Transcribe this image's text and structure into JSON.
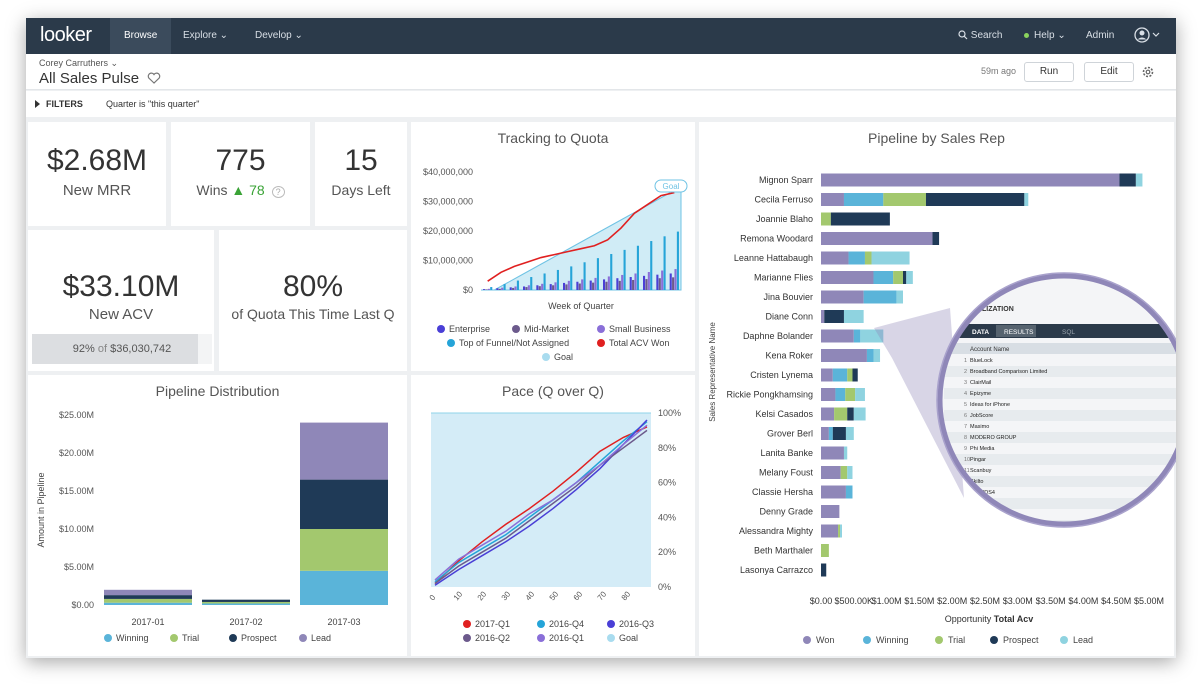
{
  "nav": {
    "logo": "looker",
    "items": [
      "Browse",
      "Explore ⌄",
      "Develop ⌄"
    ],
    "search": "Search",
    "help": "Help ⌄",
    "admin": "Admin"
  },
  "header": {
    "owner": "Corey Carruthers ⌄",
    "title": "All Sales Pulse",
    "age": "59m ago",
    "run_label": "Run",
    "edit_label": "Edit"
  },
  "filters": {
    "label": "FILTERS",
    "value": "Quarter is \"this quarter\""
  },
  "kpis": {
    "mrr": {
      "value": "$2.68M",
      "label": "New MRR"
    },
    "wins": {
      "value": "775",
      "label": "Wins",
      "delta": "78"
    },
    "days": {
      "value": "15",
      "label": "Days Left"
    },
    "acv": {
      "value": "$33.10M",
      "label": "New ACV",
      "progress_pct": "92%",
      "progress_of": "of",
      "progress_target": "$36,030,742",
      "progress_fraction": 0.92
    },
    "quota": {
      "value": "80%",
      "label": "of Quota This Time Last Q"
    }
  },
  "colors": {
    "enterprise": "#4a3fd6",
    "midmarket": "#6c5a8c",
    "small_business": "#8a6fd8",
    "top_funnel": "#25a4d8",
    "total_acv": "#e02020",
    "goal": "#a9dcef",
    "won": "#8f87b8",
    "winning": "#5ab4d9",
    "trial": "#a3c86e",
    "prospect": "#1f3a57",
    "lead": "#8fd3e0"
  },
  "charts": {
    "tracking": {
      "title": "Tracking to Quota",
      "goal_badge": "Goal",
      "xlabel": "Week of Quarter",
      "y_ticks": [
        "$40,000,000",
        "$30,000,000",
        "$20,000,000",
        "$10,000,000",
        "$0"
      ],
      "legend": [
        "Enterprise",
        "Mid-Market",
        "Small Business",
        "Top of Funnel/Not Assigned",
        "Total ACV Won",
        "Goal"
      ]
    },
    "distribution": {
      "title": "Pipeline Distribution",
      "ylabel": "Amount in Pipeline",
      "y_ticks": [
        "$25.00M",
        "$20.00M",
        "$15.00M",
        "$10.00M",
        "$5.00M",
        "$0.00"
      ],
      "legend": [
        "Winning",
        "Trial",
        "Prospect",
        "Lead"
      ]
    },
    "pace": {
      "title": "Pace (Q over Q)",
      "x_ticks": [
        "0",
        "10",
        "20",
        "30",
        "40",
        "50",
        "60",
        "70",
        "80"
      ],
      "y_ticks": [
        "100%",
        "80%",
        "60%",
        "40%",
        "20%",
        "0%"
      ],
      "legend": [
        "2017-Q1",
        "2016-Q4",
        "2016-Q3",
        "2016-Q2",
        "2016-Q1",
        "Goal"
      ]
    },
    "pipeline_rep": {
      "title": "Pipeline by Sales Rep",
      "ylabel": "Sales Representative Name",
      "xlabel_pre": "Opportunity",
      "xlabel_bold": "Total Acv",
      "x_ticks": [
        "$0.00",
        "$500.00K",
        "$1.00M",
        "$1.50M",
        "$2.00M",
        "$2.50M",
        "$3.00M",
        "$3.50M",
        "$4.00M",
        "$4.50M",
        "$5.00M"
      ],
      "legend": [
        "Won",
        "Winning",
        "Trial",
        "Prospect",
        "Lead"
      ]
    }
  },
  "chart_data": [
    {
      "type": "bar",
      "title": "Tracking to Quota",
      "xlabel": "Week of Quarter",
      "ylim": [
        0,
        40000000
      ],
      "series": [
        {
          "name": "Enterprise",
          "values": [
            0.3,
            0.6,
            0.9,
            1.2,
            1.6,
            2.0,
            2.4,
            2.8,
            3.2,
            3.6,
            4.0,
            4.4,
            4.8,
            5.2,
            5.6
          ]
        },
        {
          "name": "Mid-Market",
          "values": [
            0.2,
            0.4,
            0.7,
            1.0,
            1.3,
            1.6,
            1.9,
            2.2,
            2.5,
            2.8,
            3.1,
            3.4,
            3.7,
            4.0,
            4.3
          ]
        },
        {
          "name": "Small Business",
          "values": [
            0.4,
            0.8,
            1.2,
            1.6,
            2.1,
            2.6,
            3.1,
            3.6,
            4.1,
            4.6,
            5.1,
            5.6,
            6.1,
            6.6,
            7.1
          ]
        },
        {
          "name": "Top of Funnel/Not Assigned",
          "values": [
            1.0,
            2.0,
            3.2,
            4.4,
            5.6,
            6.8,
            8.0,
            9.4,
            10.8,
            12.2,
            13.6,
            15.0,
            16.6,
            18.2,
            19.8
          ]
        },
        {
          "name": "Total ACV Won",
          "type": "line",
          "values": [
            3,
            6,
            8,
            9.5,
            11,
            12,
            13,
            14,
            15,
            17,
            21,
            26,
            29,
            32,
            33
          ]
        },
        {
          "name": "Goal",
          "type": "area",
          "values": [
            0,
            2.5,
            5,
            7.5,
            10,
            12.5,
            15,
            17.5,
            20,
            22.5,
            25,
            27.5,
            30,
            32.5,
            36
          ]
        }
      ]
    },
    {
      "type": "bar",
      "title": "Pipeline Distribution",
      "ylabel": "Amount in Pipeline",
      "categories": [
        "2017-01",
        "2017-02",
        "2017-03"
      ],
      "ylim": [
        0,
        25
      ],
      "series": [
        {
          "name": "Winning",
          "values": [
            0.3,
            0.2,
            4.5
          ]
        },
        {
          "name": "Trial",
          "values": [
            0.5,
            0.2,
            5.5
          ]
        },
        {
          "name": "Prospect",
          "values": [
            0.5,
            0.3,
            6.5
          ]
        },
        {
          "name": "Lead",
          "values": [
            0.7,
            0.0,
            7.5
          ]
        }
      ]
    },
    {
      "type": "line",
      "title": "Pace (Q over Q)",
      "ylim": [
        0,
        100
      ],
      "x": [
        0,
        10,
        20,
        30,
        40,
        50,
        60,
        70,
        80,
        90
      ],
      "series": [
        {
          "name": "2017-Q1",
          "values": [
            2,
            15,
            26,
            36,
            45,
            55,
            66,
            78,
            86,
            92
          ]
        },
        {
          "name": "2016-Q4",
          "values": [
            3,
            14,
            22,
            30,
            40,
            50,
            60,
            72,
            84,
            95
          ]
        },
        {
          "name": "2016-Q3",
          "values": [
            1,
            10,
            18,
            26,
            35,
            45,
            56,
            68,
            82,
            96
          ]
        },
        {
          "name": "2016-Q2",
          "values": [
            2,
            12,
            20,
            28,
            38,
            48,
            58,
            70,
            80,
            90
          ]
        },
        {
          "name": "2016-Q1",
          "values": [
            4,
            16,
            24,
            32,
            42,
            50,
            60,
            70,
            82,
            93
          ]
        },
        {
          "name": "Goal",
          "values": [
            100,
            100,
            100,
            100,
            100,
            100,
            100,
            100,
            100,
            100
          ]
        }
      ]
    },
    {
      "type": "bar",
      "title": "Pipeline by Sales Rep",
      "xlabel": "Opportunity Total Acv",
      "ylabel": "Sales Representative Name",
      "xlim": [
        0,
        5.0
      ],
      "categories": [
        "Mignon Sparr",
        "Cecila Ferruso",
        "Joannie Blaho",
        "Remona Woodard",
        "Leanne Hattabaugh",
        "Marianne Flies",
        "Jina Bouvier",
        "Diane Conn",
        "Daphne Bolander",
        "Kena Roker",
        "Cristen Lynema",
        "Rickie Pongkhamsing",
        "Kelsi Casados",
        "Grover Berl",
        "Lanita Banke",
        "Melany Foust",
        "Classie Hersha",
        "Denny Grade",
        "Alessandra Mighty",
        "Beth Marthaler",
        "Lasonya Carrazco"
      ],
      "series": [
        {
          "name": "Won",
          "values": [
            4.55,
            0.35,
            0.0,
            1.7,
            0.42,
            0.8,
            0.65,
            0.05,
            0.5,
            0.7,
            0.18,
            0.22,
            0.2,
            0.12,
            0.35,
            0.3,
            0.38,
            0.28,
            0.26,
            0.0,
            0.0
          ]
        },
        {
          "name": "Winning",
          "values": [
            0.0,
            0.6,
            0.0,
            0.0,
            0.25,
            0.3,
            0.5,
            0.0,
            0.1,
            0.1,
            0.22,
            0.15,
            0.0,
            0.06,
            0.0,
            0.0,
            0.1,
            0.0,
            0.0,
            0.0,
            0.0
          ]
        },
        {
          "name": "Trial",
          "values": [
            0.0,
            0.65,
            0.15,
            0.0,
            0.1,
            0.15,
            0.0,
            0.0,
            0.0,
            0.0,
            0.08,
            0.15,
            0.2,
            0.0,
            0.0,
            0.1,
            0.0,
            0.0,
            0.03,
            0.12,
            0.0
          ]
        },
        {
          "name": "Prospect",
          "values": [
            0.25,
            1.5,
            0.9,
            0.1,
            0.0,
            0.05,
            0.0,
            0.3,
            0.0,
            0.0,
            0.08,
            0.0,
            0.1,
            0.2,
            0.0,
            0.0,
            0.0,
            0.0,
            0.0,
            0.0,
            0.08
          ]
        },
        {
          "name": "Lead",
          "values": [
            0.1,
            0.06,
            0.0,
            0.0,
            0.58,
            0.1,
            0.1,
            0.3,
            0.35,
            0.1,
            0.0,
            0.15,
            0.18,
            0.12,
            0.05,
            0.08,
            0.0,
            0.0,
            0.03,
            0.0,
            0.0
          ]
        }
      ]
    }
  ],
  "magnifier": {
    "section": "LIZATION",
    "tabs": [
      "DATA",
      "RESULTS",
      "SQL"
    ],
    "column": "Account Name",
    "rows": [
      "BlueLock",
      "Broadband Comparison Limited",
      "ClairMail",
      "Epizyme",
      "Ideas for iPhone",
      "JobScore",
      "Masimo",
      "MODERO GROUP",
      "Phi Media",
      "Pingar",
      "Scanbuy",
      "Skilto",
      "STANDS4",
      "Swaplogic",
      "Tripit",
      "Vyinteractive"
    ]
  }
}
